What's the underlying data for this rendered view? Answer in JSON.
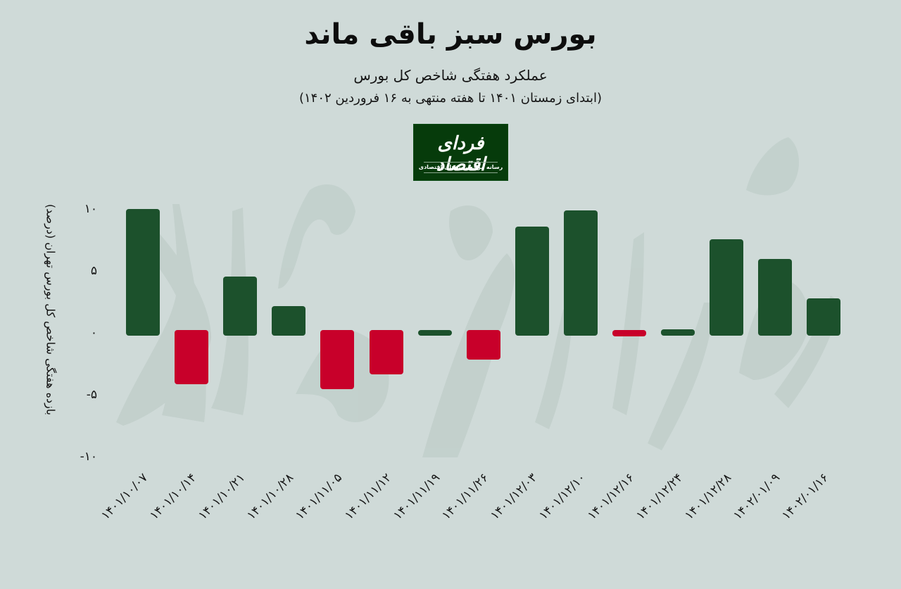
{
  "header": {
    "title": "بورس سبز باقی ماند",
    "subtitle": "عملکرد هفتگی شاخص کل بورس",
    "subtitle_range": "(ابتدای زمستان ۱۴۰۱ تا هفته منتهی به ۱۶ فروردین ۱۴۰۲)"
  },
  "logo": {
    "name": "فردای اقتصاد",
    "tagline": "رسانه مرجع روندهای اقتصادی",
    "background": "#063b0b"
  },
  "colors": {
    "background": "#cfdad8",
    "positive": "#1c512c",
    "negative": "#c8002a"
  },
  "axis": {
    "ylabel": "بازده هفتگی شاخص کل بورس تهران (درصد)",
    "yticks": [
      {
        "value": 10,
        "label": "۱۰"
      },
      {
        "value": 5,
        "label": "۵"
      },
      {
        "value": 0,
        "label": "۰"
      },
      {
        "value": -5,
        "label": "-۵"
      },
      {
        "value": -10,
        "label": "-۱۰"
      }
    ]
  },
  "chart_data": {
    "type": "bar",
    "title": "بورس سبز باقی ماند",
    "subtitle": "عملکرد هفتگی شاخص کل بورس (ابتدای زمستان ۱۴۰۱ تا هفته منتهی به ۱۶ فروردین ۱۴۰۲)",
    "xlabel": "",
    "ylabel": "بازده هفتگی شاخص کل بورس تهران (درصد)",
    "ylim": [
      -10,
      10
    ],
    "yticks": [
      10,
      5,
      0,
      -5,
      -10
    ],
    "grid": false,
    "legend": null,
    "categories": [
      "۱۴۰۱/۱۰/۰۷",
      "۱۴۰۱/۱۰/۱۴",
      "۱۴۰۱/۱۰/۲۱",
      "۱۴۰۱/۱۰/۲۸",
      "۱۴۰۱/۱۱/۰۵",
      "۱۴۰۱/۱۱/۱۲",
      "۱۴۰۱/۱۱/۱۹",
      "۱۴۰۱/۱۱/۲۶",
      "۱۴۰۱/۱۲/۰۳",
      "۱۴۰۱/۱۲/۱۰",
      "۱۴۰۱/۱۲/۱۶",
      "۱۴۰۱/۱۲/۲۴",
      "۱۴۰۱/۱۲/۲۸",
      "۱۴۰۲/۰۱/۰۹",
      "۱۴۰۲/۰۱/۱۶"
    ],
    "values": [
      10.2,
      -4.4,
      4.8,
      2.4,
      -4.8,
      -3.6,
      0.4,
      -2.4,
      8.8,
      10.1,
      -0.5,
      0.5,
      7.8,
      6.2,
      3.0
    ],
    "bar_colors": "green for positive (#1c512c), red for negative (#c8002a)"
  }
}
